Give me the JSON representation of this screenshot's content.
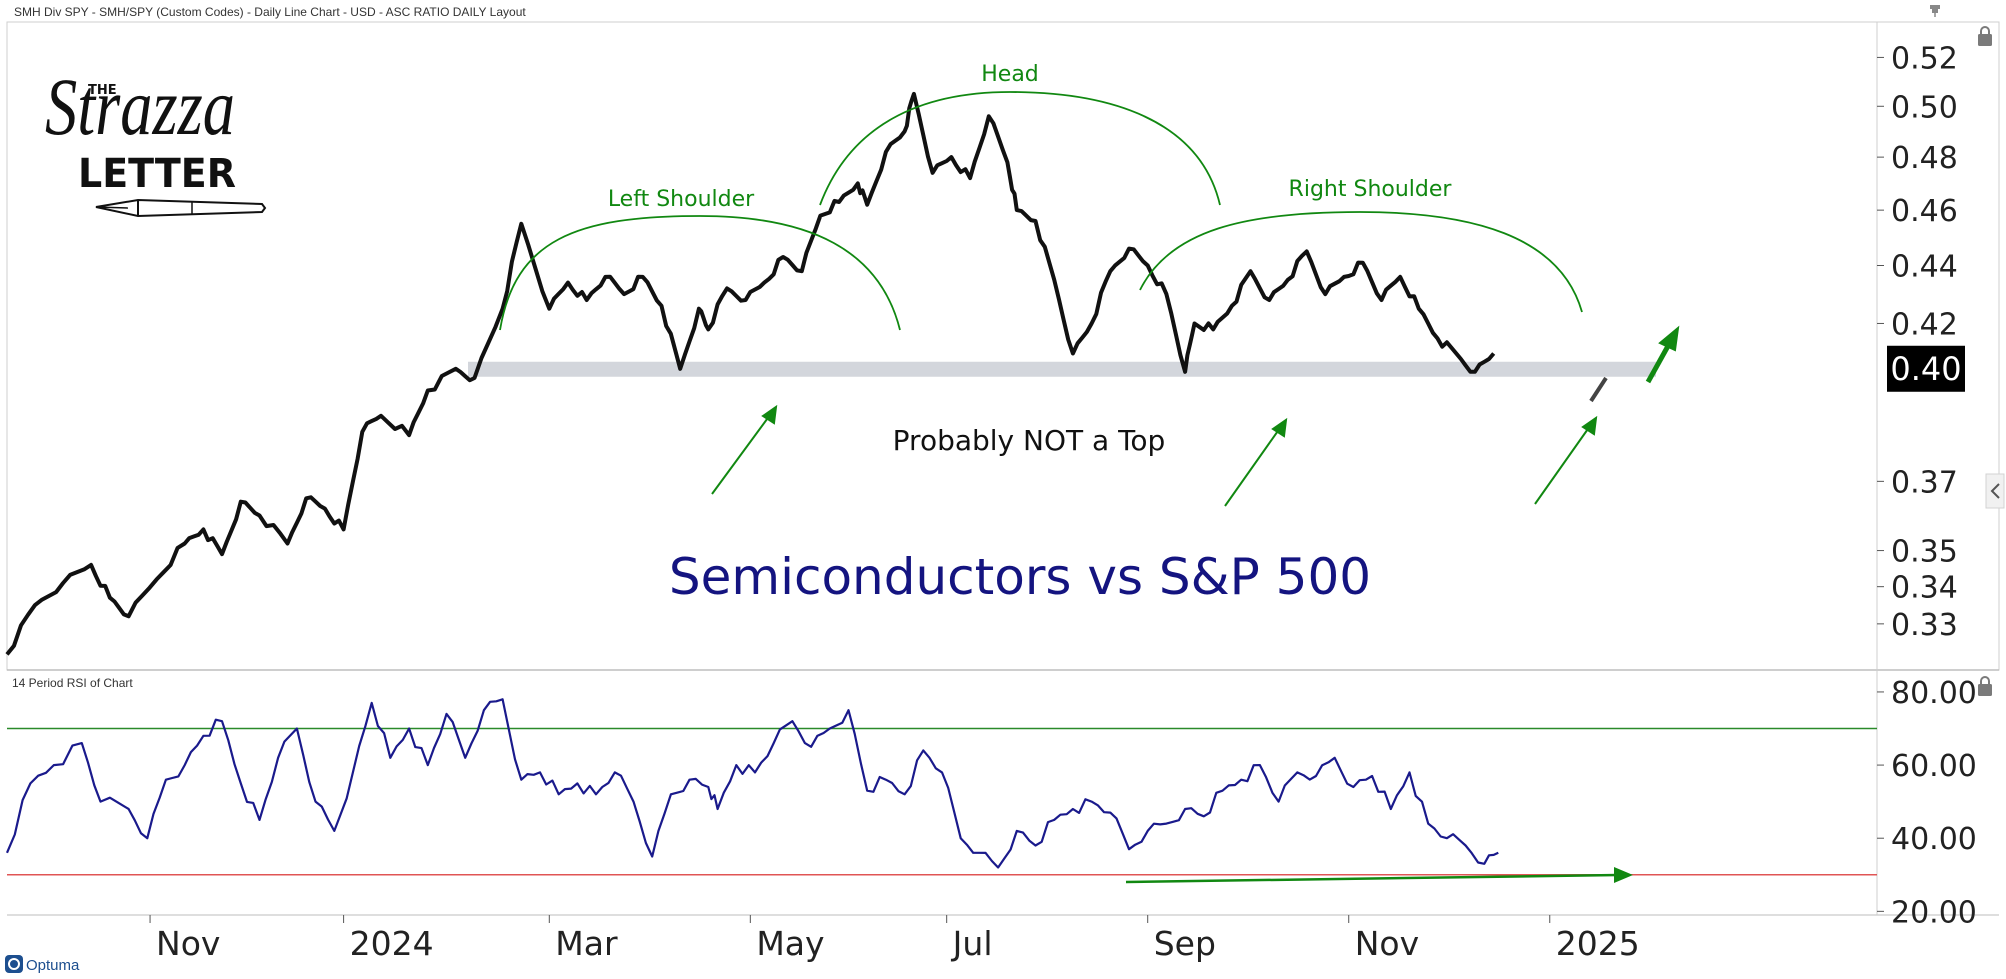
{
  "header": {
    "title": "SMH Div SPY - SMH/SPY (Custom Codes) - Daily Line Chart - USD - ASC RATIO DAILY Layout"
  },
  "logo": {
    "line1": "THE",
    "line2": "Strazza",
    "line3": "LETTER"
  },
  "brand": {
    "name": "Optuma"
  },
  "icons": {
    "lock": "lock-icon",
    "pin": "pin-icon",
    "collapse": "chevron-left-icon"
  },
  "colors": {
    "price_line": "#111111",
    "rsi_line": "#1a1a8c",
    "overbought": "#2a8a2a",
    "oversold": "#e05555",
    "annotation": "#118811",
    "support_band": "#d3d6dc",
    "title": "#141480"
  },
  "annotations": {
    "head": "Head",
    "left_shoulder": "Left Shoulder",
    "right_shoulder": "Right Shoulder",
    "support": "Probably NOT a Top",
    "title": "Semiconductors vs S&P 500"
  },
  "chart_data": [
    {
      "type": "line",
      "title": "SMH Div SPY - SMH/SPY (Custom Codes) - Daily Line Chart",
      "scale": "log",
      "ylim": [
        0.318,
        0.535
      ],
      "yticks": [
        "0.52",
        "0.50",
        "0.48",
        "0.46",
        "0.44",
        "0.42",
        "0.37",
        "0.35",
        "0.34",
        "0.33"
      ],
      "ytick_values": [
        0.52,
        0.5,
        0.48,
        0.46,
        0.44,
        0.42,
        0.37,
        0.35,
        0.34,
        0.33
      ],
      "last_value_label": "0.40",
      "last_value": 0.405,
      "support_level": 0.405,
      "xlim": [
        0,
        20
      ],
      "series": [
        {
          "name": "SMH/SPY",
          "x": [
            0,
            0.3,
            0.6,
            0.9,
            1.1,
            1.3,
            1.6,
            1.9,
            2.1,
            2.3,
            2.5,
            2.7,
            3.0,
            3.2,
            3.4,
            3.6,
            3.8,
            4.0,
            4.3,
            4.5,
            4.8,
            5.0,
            5.3,
            5.5,
            5.8,
            6.0,
            6.2,
            6.4,
            6.6,
            6.8,
            7.0,
            7.2,
            7.4,
            7.5,
            7.7,
            7.9,
            8.1,
            8.3,
            8.5,
            8.7,
            8.9,
            9.1,
            9.2,
            9.4,
            9.6,
            9.7,
            9.9,
            10.1,
            10.3,
            10.5,
            10.7,
            10.8,
            11.0,
            11.2,
            11.4,
            11.6,
            11.8,
            12.0,
            12.2,
            12.4,
            12.6,
            12.7,
            12.9,
            13.1,
            13.3,
            13.5,
            13.7,
            13.9,
            14.1,
            14.3,
            14.5,
            14.7,
            14.9,
            15.1,
            15.3,
            15.5,
            15.7,
            15.9
          ],
          "values": [
            0.322,
            0.335,
            0.341,
            0.346,
            0.337,
            0.332,
            0.342,
            0.352,
            0.356,
            0.349,
            0.364,
            0.36,
            0.352,
            0.365,
            0.362,
            0.356,
            0.385,
            0.39,
            0.384,
            0.398,
            0.405,
            0.402,
            0.425,
            0.455,
            0.425,
            0.434,
            0.428,
            0.436,
            0.43,
            0.436,
            0.426,
            0.405,
            0.425,
            0.418,
            0.432,
            0.428,
            0.434,
            0.443,
            0.438,
            0.458,
            0.463,
            0.47,
            0.462,
            0.482,
            0.49,
            0.505,
            0.474,
            0.48,
            0.472,
            0.496,
            0.478,
            0.46,
            0.456,
            0.435,
            0.41,
            0.42,
            0.438,
            0.446,
            0.44,
            0.43,
            0.404,
            0.42,
            0.418,
            0.426,
            0.438,
            0.428,
            0.435,
            0.445,
            0.43,
            0.436,
            0.441,
            0.428,
            0.436,
            0.425,
            0.415,
            0.41,
            0.404,
            0.41
          ]
        }
      ]
    },
    {
      "type": "line",
      "title": "14 Period RSI of Chart",
      "ylim": [
        19,
        86
      ],
      "yticks": [
        "80.00",
        "60.00",
        "40.00",
        "20.00"
      ],
      "ytick_values": [
        80,
        60,
        40,
        20
      ],
      "overbought": 70,
      "oversold": 30,
      "xlim": [
        0,
        20
      ],
      "xtick_labels": [
        "Nov",
        "2024",
        "Mar",
        "May",
        "Jul",
        "Sep",
        "Nov",
        "2025"
      ],
      "xtick_positions": [
        1.53,
        3.6,
        5.8,
        7.95,
        10.05,
        12.2,
        14.35,
        16.5
      ],
      "series": [
        {
          "name": "RSI 14",
          "x": [
            0,
            0.25,
            0.5,
            0.8,
            1.0,
            1.3,
            1.5,
            1.7,
            1.9,
            2.1,
            2.3,
            2.5,
            2.7,
            2.9,
            3.1,
            3.3,
            3.5,
            3.7,
            3.9,
            4.1,
            4.3,
            4.5,
            4.7,
            4.9,
            5.1,
            5.3,
            5.5,
            5.7,
            5.9,
            6.1,
            6.3,
            6.5,
            6.7,
            6.9,
            7.1,
            7.3,
            7.5,
            7.6,
            7.8,
            8.0,
            8.2,
            8.4,
            8.6,
            8.8,
            9.0,
            9.2,
            9.4,
            9.6,
            9.8,
            10.0,
            10.2,
            10.4,
            10.6,
            10.8,
            11.0,
            11.2,
            11.4,
            11.6,
            11.8,
            12.0,
            12.2,
            12.4,
            12.6,
            12.8,
            13.0,
            13.2,
            13.4,
            13.6,
            13.8,
            14.0,
            14.2,
            14.4,
            14.6,
            14.8,
            15.0,
            15.2,
            15.4,
            15.6,
            15.8,
            15.95
          ],
          "values": [
            36,
            55,
            60,
            66,
            50,
            48,
            40,
            56,
            60,
            68,
            72,
            55,
            45,
            62,
            70,
            50,
            42,
            58,
            77,
            62,
            70,
            60,
            74,
            62,
            75,
            78,
            56,
            58,
            52,
            55,
            52,
            58,
            50,
            35,
            52,
            56,
            54,
            48,
            60,
            58,
            66,
            72,
            65,
            70,
            75,
            53,
            56,
            52,
            64,
            58,
            40,
            36,
            32,
            42,
            38,
            45,
            48,
            50,
            47,
            37,
            42,
            44,
            48,
            46,
            53,
            56,
            60,
            50,
            58,
            57,
            62,
            54,
            57,
            48,
            58,
            44,
            40,
            38,
            33,
            36
          ]
        }
      ]
    }
  ]
}
